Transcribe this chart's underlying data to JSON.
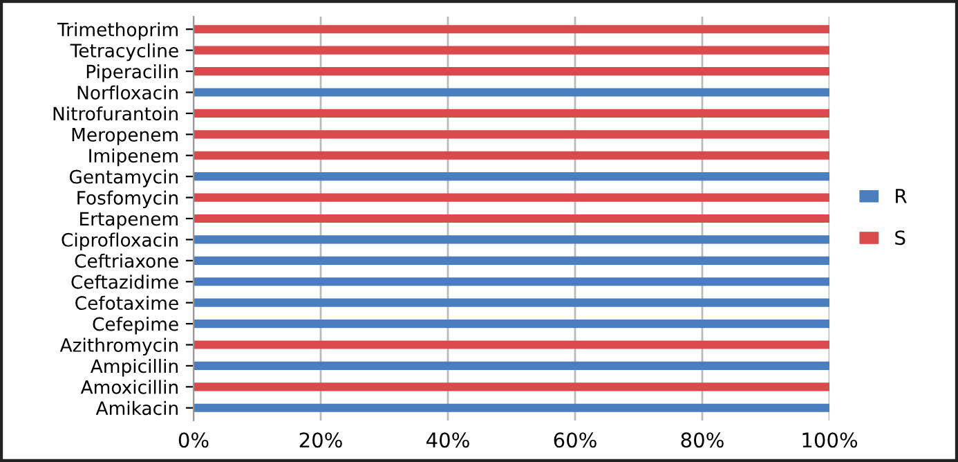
{
  "chart_data": {
    "type": "bar",
    "orientation": "horizontal",
    "stacked": true,
    "categories": [
      "Trimethoprim",
      "Tetracycline",
      "Piperacilin",
      "Norfloxacin",
      "Nitrofurantoin",
      "Meropenem",
      "Imipenem",
      "Gentamycin",
      "Fosfomycin",
      "Ertapenem",
      "Ciprofloxacin",
      "Ceftriaxone",
      "Ceftazidime",
      "Cefotaxime",
      "Cefepime",
      "Azithromycin",
      "Ampicillin",
      "Amoxicillin",
      "Amikacin"
    ],
    "series": [
      {
        "name": "R",
        "color": "#4a7ebf",
        "values": [
          0,
          0,
          0,
          100,
          0,
          0,
          0,
          100,
          0,
          0,
          100,
          100,
          100,
          100,
          100,
          0,
          100,
          0,
          100
        ]
      },
      {
        "name": "S",
        "color": "#d94a4d",
        "values": [
          100,
          100,
          100,
          0,
          100,
          100,
          100,
          0,
          100,
          100,
          0,
          0,
          0,
          0,
          0,
          100,
          0,
          100,
          0
        ]
      }
    ],
    "xlim": [
      0,
      100
    ],
    "xticks": [
      {
        "value": 0,
        "label": "0%"
      },
      {
        "value": 20,
        "label": "20%"
      },
      {
        "value": 40,
        "label": "40%"
      },
      {
        "value": 60,
        "label": "60%"
      },
      {
        "value": 80,
        "label": "80%"
      },
      {
        "value": 100,
        "label": "100%"
      }
    ],
    "grid": "x",
    "legend": "right"
  }
}
